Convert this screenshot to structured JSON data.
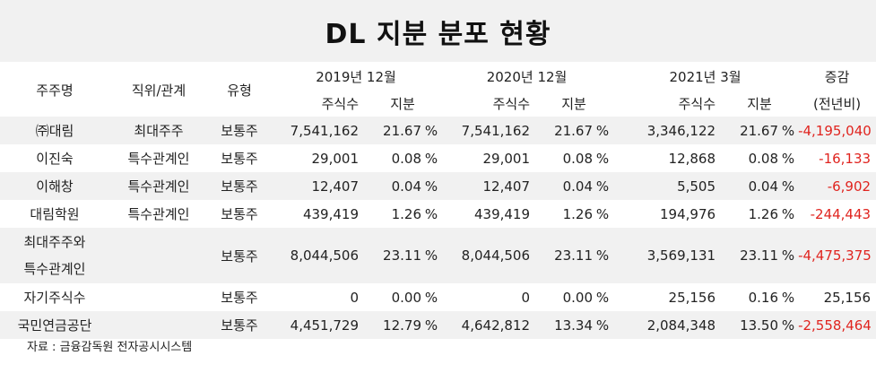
{
  "title": "DL 지분 분포 현황",
  "header": {
    "shareholder": "주주명",
    "position": "직위/관계",
    "type": "유형",
    "period1": "2019년 12월",
    "period2": "2020년 12월",
    "period3": "2021년 3월",
    "change_line1": "증감",
    "change_line2": "(전년비)",
    "shares": "주식수",
    "stake": "지분"
  },
  "rows": [
    {
      "name": "㈜대림",
      "relation": "최대주주",
      "type": "보통주",
      "s1": "7,541,162",
      "p1": "21.67",
      "s2": "7,541,162",
      "p2": "21.67",
      "s3": "3,346,122",
      "p3": "21.67",
      "change": "-4,195,040"
    },
    {
      "name": "이진숙",
      "relation": "특수관계인",
      "type": "보통주",
      "s1": "29,001",
      "p1": "0.08",
      "s2": "29,001",
      "p2": "0.08",
      "s3": "12,868",
      "p3": "0.08",
      "change": "-16,133"
    },
    {
      "name": "이해창",
      "relation": "특수관계인",
      "type": "보통주",
      "s1": "12,407",
      "p1": "0.04",
      "s2": "12,407",
      "p2": "0.04",
      "s3": "5,505",
      "p3": "0.04",
      "change": "-6,902"
    },
    {
      "name": "대림학원",
      "relation": "특수관계인",
      "type": "보통주",
      "s1": "439,419",
      "p1": "1.26",
      "s2": "439,419",
      "p2": "1.26",
      "s3": "194,976",
      "p3": "1.26",
      "change": "-244,443"
    },
    {
      "name_line1": "최대주주와",
      "name_line2": "특수관계인",
      "relation": "",
      "type": "보통주",
      "s1": "8,044,506",
      "p1": "23.11",
      "s2": "8,044,506",
      "p2": "23.11",
      "s3": "3,569,131",
      "p3": "23.11",
      "change": "-4,475,375"
    },
    {
      "name": "자기주식수",
      "relation": "",
      "type": "보통주",
      "s1": "0",
      "p1": "0.00",
      "s2": "0",
      "p2": "0.00",
      "s3": "25,156",
      "p3": "0.16",
      "change": "25,156"
    },
    {
      "name": "국민연금공단",
      "relation": "",
      "type": "보통주",
      "s1": "4,451,729",
      "p1": "12.79",
      "s2": "4,642,812",
      "p2": "13.34",
      "s3": "2,084,348",
      "p3": "13.50",
      "change": "-2,558,464"
    }
  ],
  "percent_sign": "%",
  "source": "자료 : 금융감독원 전자공시시스템",
  "colors": {
    "negative": "#e0241f",
    "band": "#f1f1f1"
  }
}
